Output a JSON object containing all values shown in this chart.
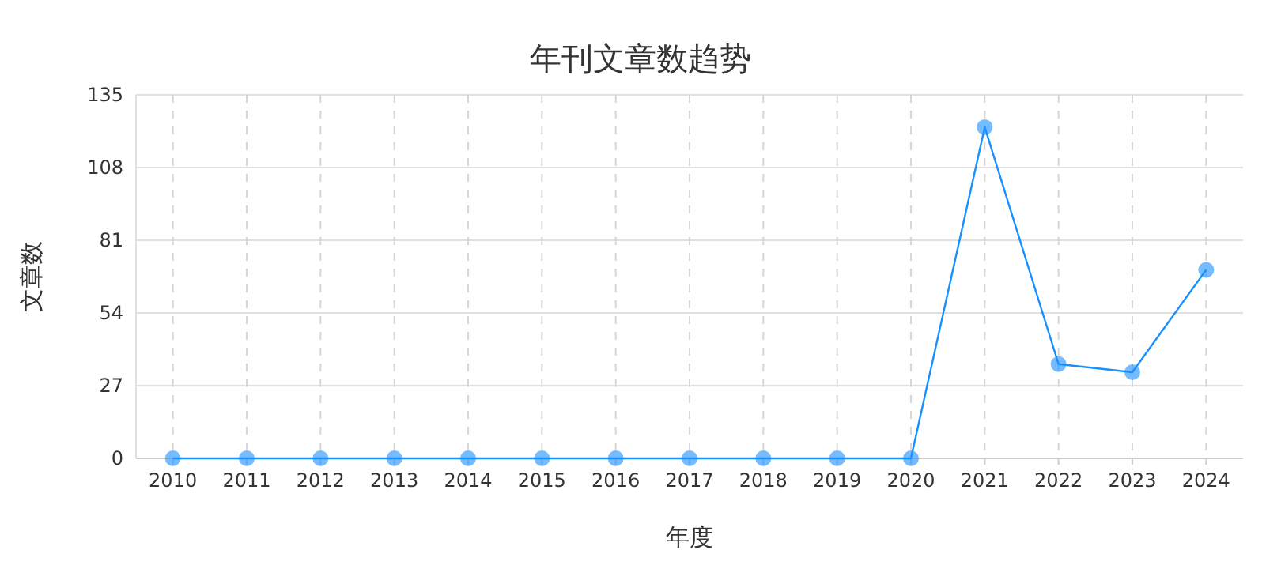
{
  "chart_data": {
    "type": "line",
    "title": "年刊文章数趋势",
    "xlabel": "年度",
    "ylabel": "文章数",
    "categories": [
      "2010",
      "2011",
      "2012",
      "2013",
      "2014",
      "2015",
      "2016",
      "2017",
      "2018",
      "2019",
      "2020",
      "2021",
      "2022",
      "2023",
      "2024"
    ],
    "series": [
      {
        "color": "#1890ff",
        "values": [
          0,
          0,
          0,
          0,
          0,
          0,
          0,
          0,
          0,
          0,
          0,
          123,
          35,
          32,
          70
        ]
      }
    ],
    "ylim": [
      0,
      135
    ],
    "yticks": [
      0,
      27,
      54,
      81,
      108,
      135
    ],
    "grid": true,
    "marker": "circle",
    "line_style": "solid"
  }
}
